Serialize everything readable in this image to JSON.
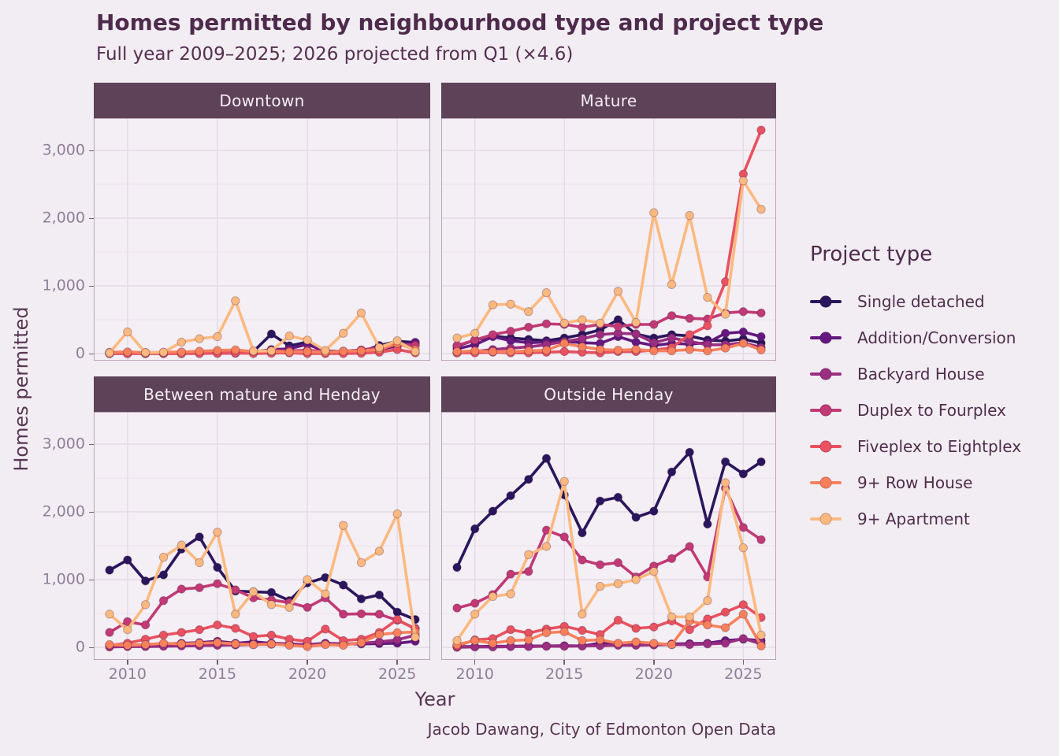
{
  "header": {
    "title": "Homes permitted by neighbourhood type and project type",
    "subtitle": "Full year 2009–2025; 2026 projected from Q1 (×4.6)",
    "caption": "Jacob Dawang, City of Edmonton Open Data"
  },
  "colors": {
    "background": "#f2edf2",
    "panel_background": "#f4eef5",
    "grid_major": "#e4dbe5",
    "grid_minor": "#ece3ec",
    "panel_border": "#9c7f9c",
    "strip_background": "#5d4258",
    "strip_text": "#f5ecf5",
    "title_text": "#4e2a4c",
    "axis_text": "#8e7f99",
    "axis_title_text": "#573653"
  },
  "chart_data": {
    "type": "line",
    "title": "Homes permitted by neighbourhood type and project type",
    "subtitle": "Full year 2009–2025; 2026 projected from Q1 (×4.6)",
    "caption": "Jacob Dawang, City of Edmonton Open Data",
    "xlabel": "Year",
    "ylabel": "Homes permitted",
    "legend_title": "Project type",
    "legend_position": "right",
    "grid": true,
    "x": [
      2009,
      2010,
      2011,
      2012,
      2013,
      2014,
      2015,
      2016,
      2017,
      2018,
      2019,
      2020,
      2021,
      2022,
      2023,
      2024,
      2025,
      2026
    ],
    "x_tick_values": [
      2010,
      2015,
      2020,
      2025
    ],
    "x_tick_labels": [
      "2010",
      "2015",
      "2020",
      "2025"
    ],
    "y_tick_values": [
      0,
      1000,
      2000,
      3000
    ],
    "y_tick_labels": [
      "0",
      "1,000",
      "2,000",
      "3,000"
    ],
    "y_minor_values": [
      500,
      1500,
      2500
    ],
    "ylim": [
      0,
      3480
    ],
    "project_types": [
      {
        "name": "Single detached",
        "color": "#2a165c"
      },
      {
        "name": "Addition/Conversion",
        "color": "#65187f"
      },
      {
        "name": "Backyard House",
        "color": "#9b2e80"
      },
      {
        "name": "Duplex to Fourplex",
        "color": "#c23a75"
      },
      {
        "name": "Fiveplex to Eightplex",
        "color": "#e9525f"
      },
      {
        "name": "9+ Row House",
        "color": "#f8815c"
      },
      {
        "name": "9+ Apartment",
        "color": "#fcb97f"
      }
    ],
    "panels": [
      {
        "label": "Downtown",
        "series": [
          [
            10,
            10,
            5,
            5,
            10,
            15,
            20,
            25,
            30,
            290,
            115,
            170,
            40,
            30,
            30,
            120,
            180,
            165
          ],
          [
            10,
            5,
            5,
            10,
            10,
            10,
            15,
            20,
            25,
            60,
            70,
            140,
            30,
            20,
            25,
            60,
            110,
            165
          ],
          [
            0,
            0,
            0,
            0,
            0,
            5,
            5,
            5,
            10,
            10,
            20,
            30,
            20,
            15,
            25,
            55,
            140,
            130
          ],
          [
            10,
            15,
            10,
            10,
            15,
            20,
            25,
            30,
            35,
            45,
            40,
            50,
            30,
            35,
            55,
            90,
            130,
            120
          ],
          [
            0,
            0,
            0,
            0,
            0,
            0,
            5,
            10,
            0,
            5,
            10,
            0,
            0,
            0,
            5,
            20,
            60,
            10
          ],
          [
            20,
            25,
            15,
            20,
            25,
            35,
            45,
            55,
            30,
            35,
            25,
            30,
            20,
            35,
            40,
            60,
            150,
            60
          ],
          [
            10,
            320,
            15,
            20,
            170,
            220,
            250,
            780,
            40,
            40,
            260,
            200,
            45,
            300,
            600,
            90,
            190,
            30
          ]
        ]
      },
      {
        "label": "Mature",
        "series": [
          [
            110,
            200,
            260,
            230,
            210,
            190,
            230,
            280,
            350,
            500,
            290,
            230,
            280,
            260,
            200,
            185,
            215,
            155
          ],
          [
            70,
            130,
            250,
            190,
            160,
            170,
            180,
            160,
            150,
            250,
            170,
            120,
            150,
            140,
            160,
            300,
            320,
            250
          ],
          [
            10,
            30,
            60,
            80,
            100,
            130,
            180,
            220,
            280,
            300,
            290,
            160,
            230,
            180,
            130,
            130,
            160,
            90
          ],
          [
            120,
            200,
            280,
            330,
            390,
            440,
            430,
            390,
            430,
            400,
            430,
            430,
            560,
            520,
            510,
            600,
            620,
            600
          ],
          [
            10,
            10,
            20,
            10,
            10,
            20,
            30,
            20,
            10,
            30,
            30,
            50,
            90,
            280,
            410,
            1060,
            2650,
            3300
          ],
          [
            30,
            40,
            30,
            30,
            40,
            50,
            150,
            100,
            60,
            50,
            60,
            40,
            40,
            60,
            40,
            80,
            150,
            55
          ],
          [
            230,
            300,
            720,
            730,
            620,
            900,
            450,
            500,
            450,
            920,
            460,
            2080,
            1020,
            2040,
            830,
            580,
            2550,
            2130
          ]
        ]
      },
      {
        "label": "Between mature and Henday",
        "series": [
          [
            1140,
            1290,
            980,
            1070,
            1450,
            1630,
            1180,
            830,
            820,
            810,
            690,
            950,
            1030,
            920,
            715,
            775,
            520,
            410
          ],
          [
            30,
            30,
            40,
            50,
            60,
            70,
            90,
            60,
            80,
            60,
            50,
            40,
            60,
            50,
            50,
            55,
            60,
            90
          ],
          [
            5,
            10,
            10,
            15,
            20,
            25,
            30,
            35,
            40,
            45,
            50,
            40,
            50,
            45,
            60,
            80,
            110,
            180
          ],
          [
            220,
            380,
            330,
            690,
            860,
            880,
            940,
            850,
            730,
            700,
            660,
            590,
            730,
            490,
            495,
            490,
            400,
            280
          ],
          [
            30,
            60,
            120,
            180,
            220,
            260,
            330,
            280,
            160,
            180,
            120,
            90,
            270,
            100,
            120,
            220,
            410,
            270
          ],
          [
            40,
            30,
            40,
            60,
            50,
            60,
            70,
            50,
            40,
            50,
            30,
            10,
            40,
            30,
            70,
            190,
            215,
            225
          ],
          [
            490,
            260,
            630,
            1330,
            1510,
            1250,
            1700,
            490,
            820,
            630,
            590,
            1000,
            790,
            1800,
            1250,
            1420,
            1970,
            150
          ]
        ]
      },
      {
        "label": "Outside Henday",
        "series": [
          [
            1180,
            1750,
            2010,
            2240,
            2480,
            2790,
            2250,
            1690,
            2160,
            2215,
            1920,
            2010,
            2590,
            2880,
            1820,
            2740,
            2560,
            2740
          ],
          [
            10,
            10,
            15,
            15,
            20,
            20,
            25,
            20,
            60,
            50,
            45,
            40,
            50,
            55,
            60,
            100,
            120,
            100
          ],
          [
            0,
            5,
            5,
            10,
            10,
            15,
            15,
            20,
            25,
            30,
            30,
            35,
            40,
            40,
            50,
            60,
            130,
            50
          ],
          [
            580,
            650,
            780,
            1080,
            1120,
            1730,
            1630,
            1290,
            1220,
            1250,
            1040,
            1200,
            1310,
            1490,
            1040,
            2350,
            1770,
            1590
          ],
          [
            20,
            110,
            130,
            260,
            210,
            270,
            310,
            250,
            190,
            400,
            280,
            300,
            390,
            260,
            420,
            520,
            630,
            440
          ],
          [
            40,
            100,
            60,
            100,
            110,
            215,
            230,
            100,
            110,
            60,
            80,
            60,
            40,
            390,
            330,
            290,
            490,
            20
          ],
          [
            100,
            490,
            750,
            790,
            1370,
            1490,
            2450,
            490,
            900,
            940,
            1000,
            1120,
            450,
            450,
            690,
            2430,
            1470,
            180
          ]
        ]
      }
    ]
  }
}
